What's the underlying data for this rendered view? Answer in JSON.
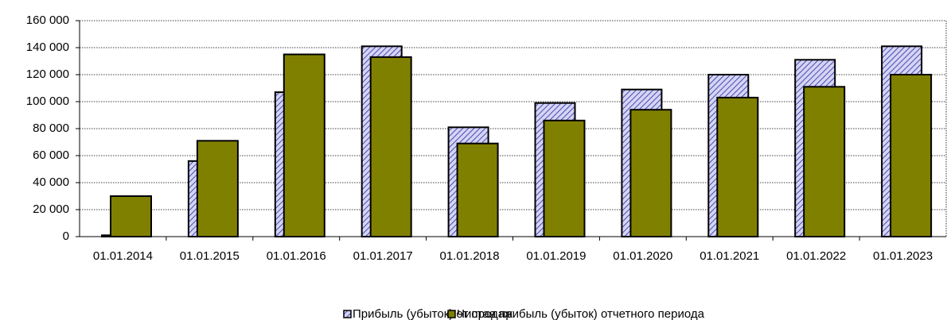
{
  "chart_data": {
    "type": "bar",
    "categories": [
      "01.01.2014",
      "01.01.2015",
      "01.01.2016",
      "01.01.2017",
      "01.01.2018",
      "01.01.2019",
      "01.01.2020",
      "01.01.2021",
      "01.01.2022",
      "01.01.2023"
    ],
    "series": [
      {
        "name": "Прибыль (убыток) от продаж",
        "color": "#c8c8f0",
        "values": [
          1000,
          56000,
          107000,
          141000,
          81000,
          99000,
          109000,
          120000,
          131000,
          141000
        ]
      },
      {
        "name": "Чистая прибыль (убыток) отчетного периода",
        "color": "#808000",
        "values": [
          30000,
          71000,
          135000,
          133000,
          69000,
          86000,
          94000,
          103000,
          111000,
          120000
        ]
      }
    ],
    "ylim": [
      0,
      160000
    ],
    "yticks": [
      0,
      {
        "value": 20000,
        "label": "20 000"
      },
      {
        "value": 40000,
        "label": "40 000"
      },
      {
        "value": 60000,
        "label": "60 000"
      },
      {
        "value": 80000,
        "label": "80 000"
      },
      {
        "value": 100000,
        "label": "100 000"
      },
      {
        "value": 120000,
        "label": "120 000"
      },
      {
        "value": 140000,
        "label": "140 000"
      },
      {
        "value": 160000,
        "label": "160 000"
      }
    ],
    "grid": true,
    "legend": "bottom"
  }
}
